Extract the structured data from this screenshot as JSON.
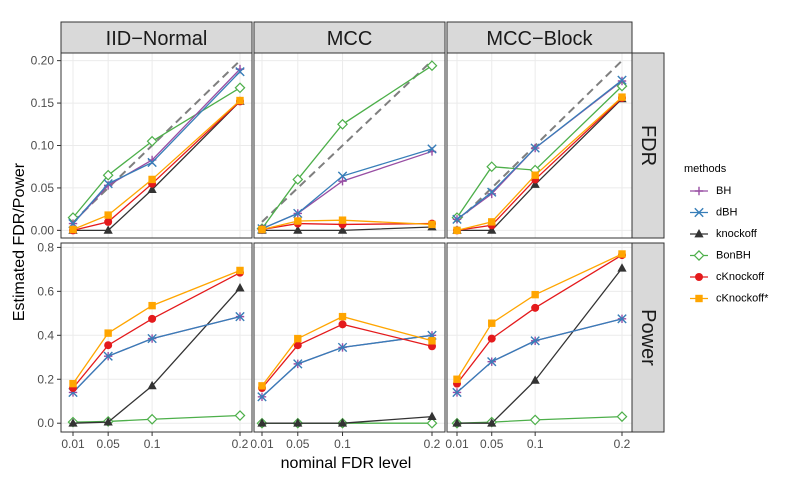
{
  "chart_data": {
    "type": "line",
    "xlabel": "nominal FDR level",
    "ylabel": "Estimated FDR/Power",
    "x": [
      0.01,
      0.05,
      0.1,
      0.2
    ],
    "x_tick_labels": [
      "0.01",
      "0.05",
      "0.1",
      "0.2"
    ],
    "columns": [
      "IID−Normal",
      "MCC",
      "MCC−Block"
    ],
    "rows": [
      "FDR",
      "Power"
    ],
    "y_ticks": {
      "FDR": [
        "0.00",
        "0.05",
        "0.10",
        "0.15",
        "0.20"
      ],
      "Power": [
        "0.0",
        "0.2",
        "0.4",
        "0.6",
        "0.8"
      ]
    },
    "y_tick_values": {
      "FDR": [
        0.0,
        0.05,
        0.1,
        0.15,
        0.2
      ],
      "Power": [
        0.0,
        0.2,
        0.4,
        0.6,
        0.8
      ]
    },
    "ylim": {
      "FDR": [
        -0.009,
        0.209
      ],
      "Power": [
        -0.04,
        0.82
      ]
    },
    "reference_line": "y = x (dashed, FDR row)",
    "legend": {
      "title": "methods",
      "position": "right",
      "entries": [
        "BH",
        "dBH",
        "knockoff",
        "BonBH",
        "cKnockoff",
        "cKnockoff*"
      ]
    },
    "series_colors": {
      "BH": "#984EA3",
      "dBH": "#377EB8",
      "knockoff": "#333333",
      "BonBH": "#4DAF4A",
      "cKnockoff": "#E41A1C",
      "cKnockoff*": "#FFA500"
    },
    "series_shapes": {
      "BH": "plus",
      "dBH": "cross",
      "knockoff": "triangle",
      "BonBH": "diamond",
      "cKnockoff": "circle",
      "cKnockoff*": "square"
    },
    "panels": [
      {
        "column": "IID−Normal",
        "row": "FDR",
        "series": [
          {
            "name": "BH",
            "values": [
              0.008,
              0.053,
              0.083,
              0.19
            ]
          },
          {
            "name": "dBH",
            "values": [
              0.008,
              0.055,
              0.08,
              0.187
            ]
          },
          {
            "name": "knockoff",
            "values": [
              0.0,
              0.0,
              0.048,
              0.152
            ]
          },
          {
            "name": "BonBH",
            "values": [
              0.015,
              0.065,
              0.105,
              0.168
            ]
          },
          {
            "name": "cKnockoff",
            "values": [
              0.0,
              0.01,
              0.055,
              0.152
            ]
          },
          {
            "name": "cKnockoff*",
            "values": [
              0.001,
              0.018,
              0.06,
              0.153
            ]
          }
        ]
      },
      {
        "column": "MCC",
        "row": "FDR",
        "series": [
          {
            "name": "BH",
            "values": [
              0.002,
              0.02,
              0.058,
              0.093
            ]
          },
          {
            "name": "dBH",
            "values": [
              0.002,
              0.02,
              0.064,
              0.096
            ]
          },
          {
            "name": "knockoff",
            "values": [
              0.0,
              0.0,
              0.0,
              0.004
            ]
          },
          {
            "name": "BonBH",
            "values": [
              0.002,
              0.06,
              0.125,
              0.194
            ]
          },
          {
            "name": "cKnockoff",
            "values": [
              0.001,
              0.008,
              0.007,
              0.008
            ]
          },
          {
            "name": "cKnockoff*",
            "values": [
              0.001,
              0.011,
              0.012,
              0.007
            ]
          }
        ]
      },
      {
        "column": "MCC−Block",
        "row": "FDR",
        "series": [
          {
            "name": "BH",
            "values": [
              0.013,
              0.043,
              0.097,
              0.176
            ]
          },
          {
            "name": "dBH",
            "values": [
              0.013,
              0.045,
              0.097,
              0.177
            ]
          },
          {
            "name": "knockoff",
            "values": [
              0.0,
              0.0,
              0.054,
              0.155
            ]
          },
          {
            "name": "BonBH",
            "values": [
              0.015,
              0.075,
              0.071,
              0.17
            ]
          },
          {
            "name": "cKnockoff",
            "values": [
              0.0,
              0.006,
              0.06,
              0.156
            ]
          },
          {
            "name": "cKnockoff*",
            "values": [
              0.0,
              0.01,
              0.065,
              0.157
            ]
          }
        ]
      },
      {
        "column": "IID−Normal",
        "row": "Power",
        "series": [
          {
            "name": "BH",
            "values": [
              0.14,
              0.305,
              0.385,
              0.485
            ]
          },
          {
            "name": "dBH",
            "values": [
              0.14,
              0.305,
              0.385,
              0.485
            ]
          },
          {
            "name": "knockoff",
            "values": [
              0.0,
              0.005,
              0.17,
              0.615
            ]
          },
          {
            "name": "BonBH",
            "values": [
              0.005,
              0.008,
              0.018,
              0.035
            ]
          },
          {
            "name": "cKnockoff",
            "values": [
              0.16,
              0.355,
              0.475,
              0.685
            ]
          },
          {
            "name": "cKnockoff*",
            "values": [
              0.18,
              0.41,
              0.535,
              0.695
            ]
          }
        ]
      },
      {
        "column": "MCC",
        "row": "Power",
        "series": [
          {
            "name": "BH",
            "values": [
              0.12,
              0.27,
              0.345,
              0.4
            ]
          },
          {
            "name": "dBH",
            "values": [
              0.12,
              0.27,
              0.345,
              0.4
            ]
          },
          {
            "name": "knockoff",
            "values": [
              0.0,
              0.0,
              0.0,
              0.03
            ]
          },
          {
            "name": "BonBH",
            "values": [
              0.0,
              0.0,
              0.0,
              0.0
            ]
          },
          {
            "name": "cKnockoff",
            "values": [
              0.16,
              0.355,
              0.45,
              0.35
            ]
          },
          {
            "name": "cKnockoff*",
            "values": [
              0.17,
              0.385,
              0.485,
              0.375
            ]
          }
        ]
      },
      {
        "column": "MCC−Block",
        "row": "Power",
        "series": [
          {
            "name": "BH",
            "values": [
              0.14,
              0.28,
              0.375,
              0.475
            ]
          },
          {
            "name": "dBH",
            "values": [
              0.14,
              0.28,
              0.375,
              0.475
            ]
          },
          {
            "name": "knockoff",
            "values": [
              0.0,
              0.0,
              0.195,
              0.705
            ]
          },
          {
            "name": "BonBH",
            "values": [
              0.0,
              0.005,
              0.015,
              0.03
            ]
          },
          {
            "name": "cKnockoff",
            "values": [
              0.18,
              0.385,
              0.525,
              0.765
            ]
          },
          {
            "name": "cKnockoff*",
            "values": [
              0.2,
              0.455,
              0.585,
              0.77
            ]
          }
        ]
      }
    ]
  }
}
